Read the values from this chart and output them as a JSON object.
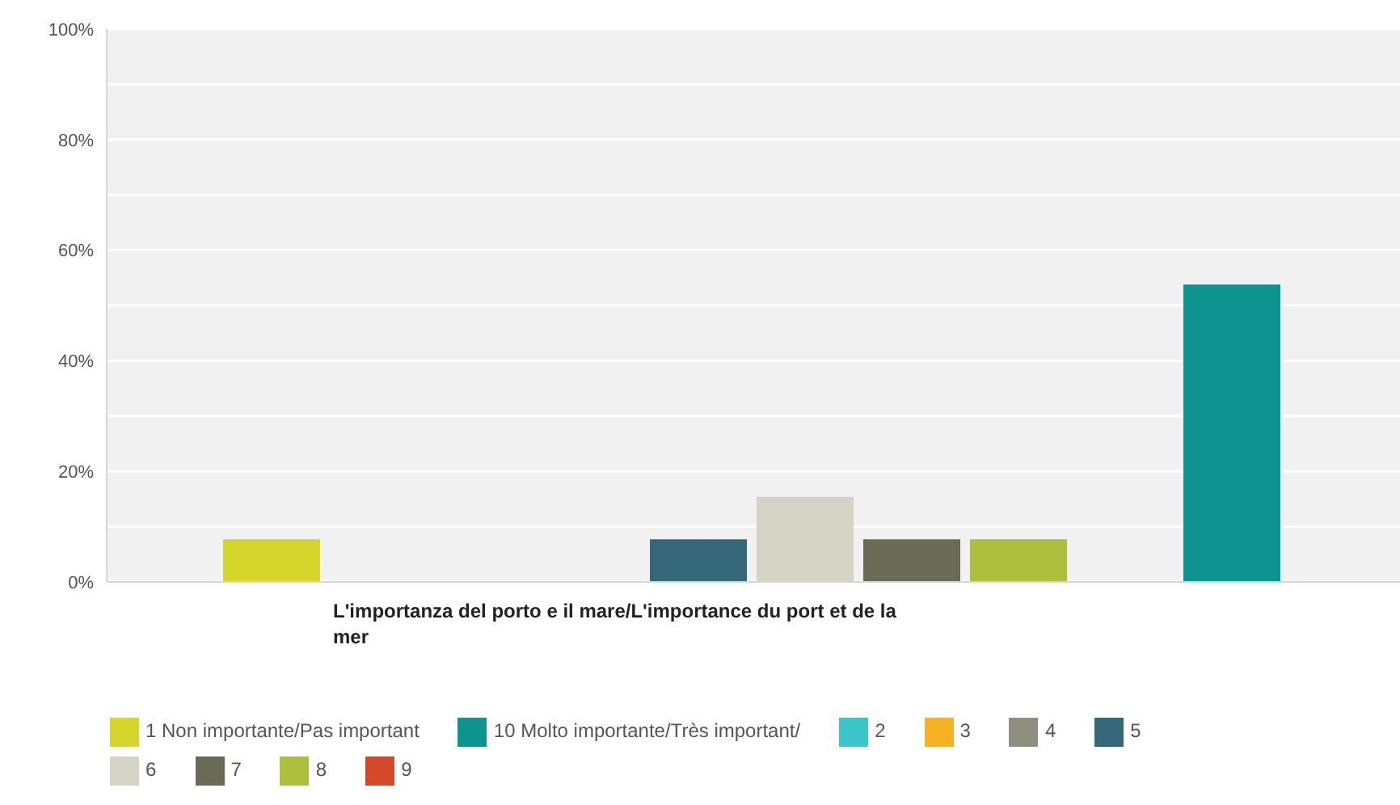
{
  "chart_data": {
    "type": "bar",
    "categories": [
      "L'importanza del porto e il mare/L'importance du port et de la mer"
    ],
    "series": [
      {
        "name": "1 Non importante/Pas important",
        "color": "#d4d62a",
        "values": [
          7.7
        ]
      },
      {
        "name": "2",
        "color": "#3cc6cc",
        "values": [
          0
        ]
      },
      {
        "name": "3",
        "color": "#f5b324",
        "values": [
          0
        ]
      },
      {
        "name": "4",
        "color": "#8e8f80",
        "values": [
          0
        ]
      },
      {
        "name": "5",
        "color": "#35697a",
        "values": [
          7.7
        ]
      },
      {
        "name": "6",
        "color": "#d5d3c4",
        "values": [
          15.4
        ]
      },
      {
        "name": "7",
        "color": "#6a6b57",
        "values": [
          7.7
        ]
      },
      {
        "name": "8",
        "color": "#aebf3e",
        "values": [
          7.7
        ]
      },
      {
        "name": "9",
        "color": "#d6482a",
        "values": [
          0
        ]
      },
      {
        "name": "10 Molto importante/Très important/",
        "color": "#0f9391",
        "values": [
          53.8
        ]
      }
    ],
    "ylim": [
      0,
      100
    ],
    "yticks": [
      {
        "value": 0,
        "label": "0%"
      },
      {
        "value": 10,
        "label": null
      },
      {
        "value": 20,
        "label": "20%"
      },
      {
        "value": 30,
        "label": null
      },
      {
        "value": 40,
        "label": "40%"
      },
      {
        "value": 50,
        "label": null
      },
      {
        "value": 60,
        "label": "60%"
      },
      {
        "value": 70,
        "label": null
      },
      {
        "value": 80,
        "label": "80%"
      },
      {
        "value": 90,
        "label": null
      },
      {
        "value": 100,
        "label": "100%"
      }
    ],
    "grid": "y",
    "legend": "bottom"
  }
}
